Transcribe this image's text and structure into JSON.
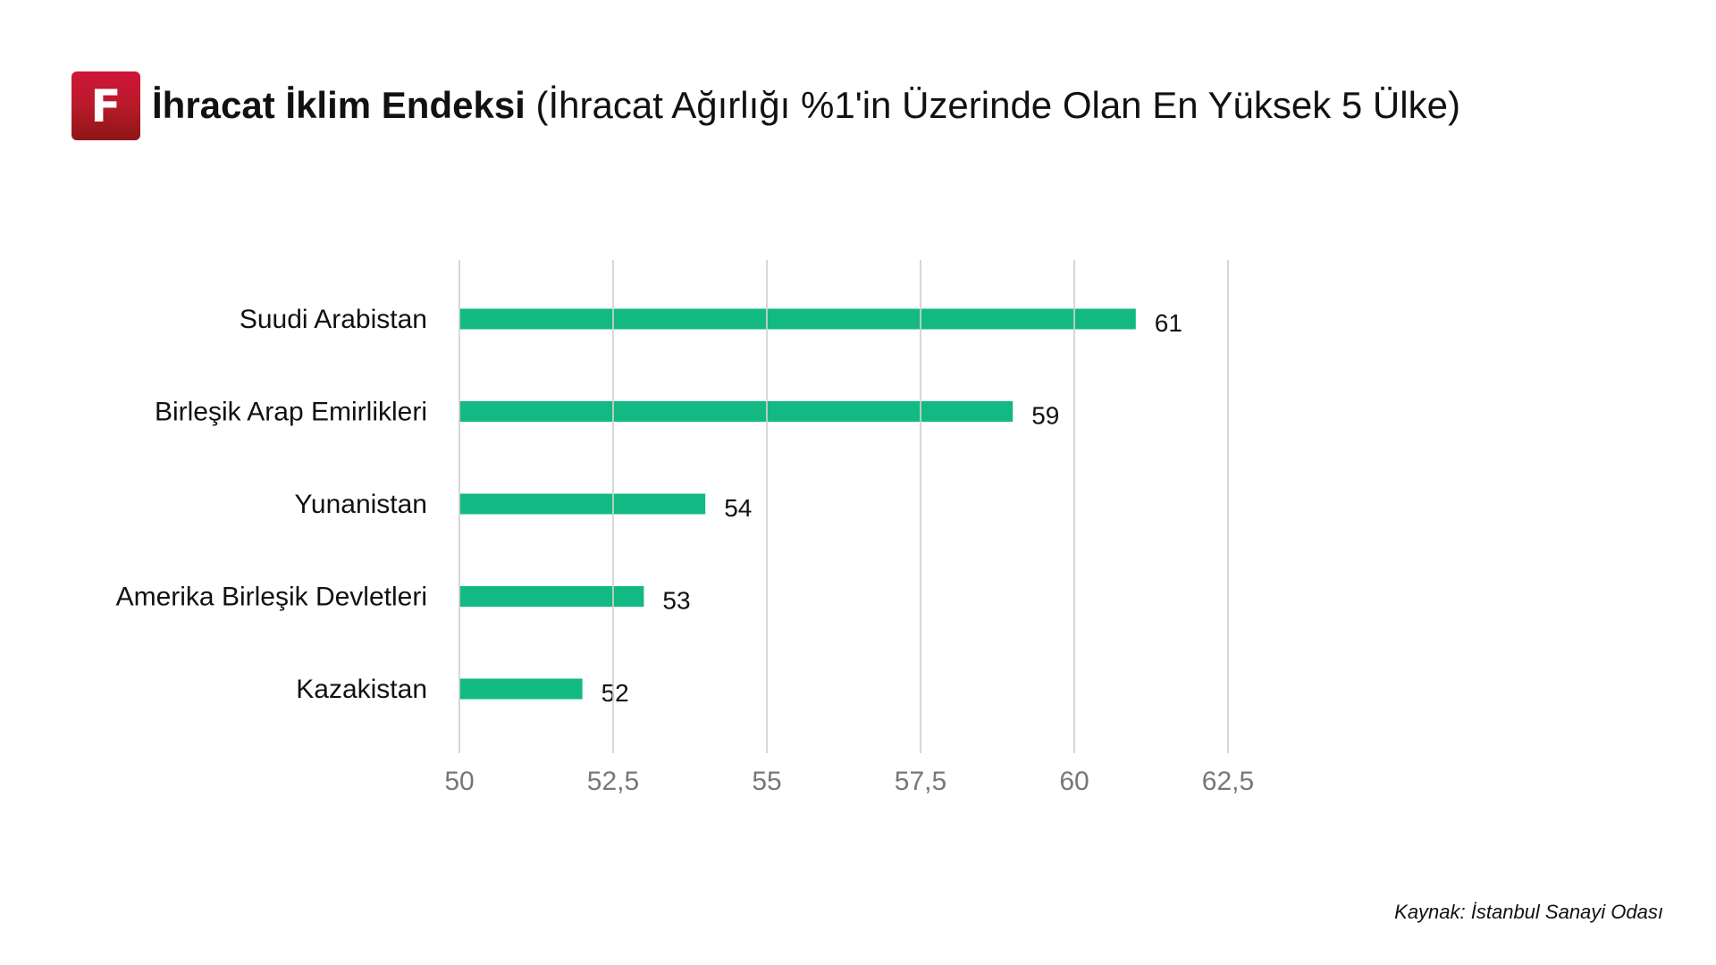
{
  "header": {
    "logo_letter": "F",
    "title_bold": "İhracat İklim Endeksi",
    "title_rest": "(İhracat Ağırlığı %1'in Üzerinde Olan En Yüksek 5 Ülke)"
  },
  "source": "Kaynak: İstanbul Sanayi Odası",
  "colors": {
    "bar": "#13b983",
    "grid": "#d0d0d0"
  },
  "chart_data": {
    "type": "bar",
    "orientation": "horizontal",
    "title": "İhracat İklim Endeksi (İhracat Ağırlığı %1'in Üzerinde Olan En Yüksek 5 Ülke)",
    "categories": [
      "Suudi Arabistan",
      "Birleşik Arap Emirlikleri",
      "Yunanistan",
      "Amerika Birleşik Devletleri",
      "Kazakistan"
    ],
    "values": [
      61,
      59,
      54,
      53,
      52
    ],
    "value_labels": [
      "61",
      "59",
      "54",
      "53",
      "52"
    ],
    "xlim": [
      50,
      62.5
    ],
    "xticks": [
      50,
      52.5,
      55,
      57.5,
      60,
      62.5
    ],
    "xtick_labels": [
      "50",
      "52,5",
      "55",
      "57,5",
      "60",
      "62,5"
    ],
    "grid": true,
    "xlabel": "",
    "ylabel": ""
  }
}
